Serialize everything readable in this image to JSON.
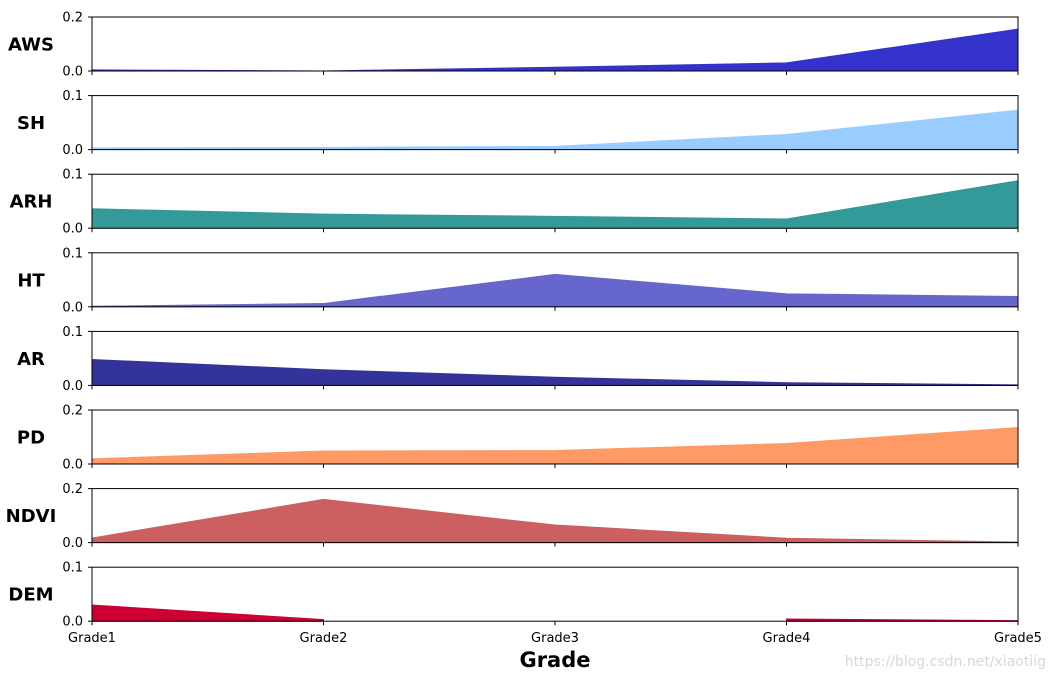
{
  "chart_data": {
    "type": "area",
    "xlabel": "Grade",
    "categories": [
      "Grade1",
      "Grade2",
      "Grade3",
      "Grade4",
      "Grade5"
    ],
    "series": [
      {
        "name": "AWS",
        "color": "#3333cc",
        "ylim": [
          0,
          0.2
        ],
        "yticks": [
          "0.0",
          "0.2"
        ],
        "values": [
          0.004,
          0.0,
          0.014,
          0.03,
          0.155
        ]
      },
      {
        "name": "SH",
        "color": "#99ccff",
        "ylim": [
          0,
          0.1
        ],
        "yticks": [
          "0.0",
          "0.1"
        ],
        "values": [
          0.003,
          0.004,
          0.006,
          0.028,
          0.073
        ]
      },
      {
        "name": "ARH",
        "color": "#339999",
        "ylim": [
          0,
          0.1
        ],
        "yticks": [
          "0.0",
          "0.1"
        ],
        "values": [
          0.036,
          0.026,
          0.022,
          0.017,
          0.088
        ]
      },
      {
        "name": "HT",
        "color": "#6666cc",
        "ylim": [
          0,
          0.1
        ],
        "yticks": [
          "0.0",
          "0.1"
        ],
        "values": [
          0.001,
          0.006,
          0.06,
          0.024,
          0.019
        ]
      },
      {
        "name": "AR",
        "color": "#333399",
        "ylim": [
          0,
          0.1
        ],
        "yticks": [
          "0.0",
          "0.1"
        ],
        "values": [
          0.048,
          0.029,
          0.015,
          0.005,
          0.001
        ]
      },
      {
        "name": "PD",
        "color": "#ff9966",
        "ylim": [
          0,
          0.2
        ],
        "yticks": [
          "0.0",
          "0.2"
        ],
        "values": [
          0.019,
          0.048,
          0.05,
          0.076,
          0.135
        ]
      },
      {
        "name": "NDVI",
        "color": "#cc5f5f",
        "ylim": [
          0,
          0.2
        ],
        "yticks": [
          "0.0",
          "0.2"
        ],
        "values": [
          0.017,
          0.16,
          0.065,
          0.016,
          0.002
        ]
      },
      {
        "name": "DEM",
        "color": "#cc0033",
        "ylim": [
          0,
          0.1
        ],
        "yticks": [
          "0.0",
          "0.1"
        ],
        "values": [
          0.03,
          0.003,
          null,
          0.004,
          0.001
        ]
      }
    ]
  },
  "watermark": "https://blog.csdn.net/xiaotiig"
}
